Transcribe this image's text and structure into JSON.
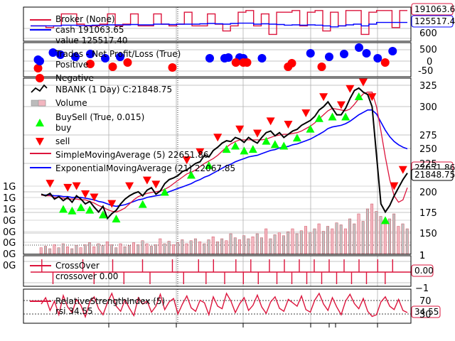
{
  "chart_data": [
    {
      "type": "line",
      "panel": "broker",
      "legend": {
        "title": "Broker (None)",
        "cash_label": "cash 191063.65",
        "value_label": "value 125517.40"
      },
      "callouts": {
        "cash": "191063.6",
        "value": "125517.4"
      },
      "yticks": [
        "600"
      ],
      "series": [
        {
          "name": "cash",
          "color": "#dc143c",
          "values": [
            0.45,
            0.45,
            0.4,
            0.45,
            0.8,
            0.8,
            0.5,
            0.45,
            0.45,
            0.5,
            0.8,
            0.45,
            0.5,
            0.8,
            0.45,
            0.45,
            0.8,
            0.5,
            0.45,
            0.5,
            0.85,
            0.45,
            0.45,
            0.8,
            0.5,
            0.3,
            0.45,
            0.85,
            0.9,
            0.45,
            0.8,
            0.2,
            0.85,
            0.85,
            0.9,
            0.45,
            0.85,
            0.9,
            0.3,
            0.85,
            0.45,
            0.9,
            0.9,
            0.2,
            0.85,
            0.9,
            0.9,
            0.4,
            0.9,
            0.9
          ]
        },
        {
          "name": "value",
          "color": "#0000ff",
          "values": [
            0.45,
            0.45,
            0.45,
            0.45,
            0.47,
            0.47,
            0.46,
            0.46,
            0.47,
            0.47,
            0.48,
            0.48,
            0.48,
            0.49,
            0.48,
            0.48,
            0.5,
            0.5,
            0.49,
            0.5,
            0.5,
            0.5,
            0.51,
            0.52,
            0.51,
            0.5,
            0.52,
            0.53,
            0.53,
            0.5,
            0.51,
            0.5,
            0.49,
            0.47,
            0.48,
            0.47,
            0.48,
            0.47,
            0.45,
            0.42,
            0.45,
            0.48,
            0.5,
            0.45,
            0.5,
            0.55,
            0.55,
            0.55,
            0.55,
            0.55
          ]
        }
      ]
    },
    {
      "type": "scatter",
      "panel": "trades",
      "legend": {
        "title": "Trades - Net Profit/Loss (True)",
        "positive": "Positive",
        "negative": "Negative"
      },
      "yticks": [
        "500",
        "0",
        "-50"
      ],
      "positive": {
        "color": "#0000ff",
        "points": [
          [
            0.02,
            0.1
          ],
          [
            0.06,
            0.6
          ],
          [
            0.08,
            0.45
          ],
          [
            0.12,
            0.3
          ],
          [
            0.16,
            0.5
          ],
          [
            0.2,
            0.2
          ],
          [
            0.24,
            0.3
          ],
          [
            0.48,
            0.2
          ],
          [
            0.52,
            0.2
          ],
          [
            0.53,
            0.25
          ],
          [
            0.56,
            0.25
          ],
          [
            0.57,
            0.2
          ],
          [
            0.62,
            0.2
          ],
          [
            0.75,
            0.55
          ],
          [
            0.8,
            0.3
          ],
          [
            0.84,
            0.5
          ],
          [
            0.88,
            0.95
          ],
          [
            0.9,
            0.55
          ],
          [
            0.93,
            0.2
          ],
          [
            0.97,
            0.7
          ]
        ]
      },
      "negative": {
        "color": "#ff0000",
        "points": [
          [
            0.02,
            -0.5
          ],
          [
            0.16,
            -0.2
          ],
          [
            0.22,
            -0.4
          ],
          [
            0.26,
            -0.1
          ],
          [
            0.38,
            -0.45
          ],
          [
            0.55,
            -0.1
          ],
          [
            0.57,
            -0.1
          ],
          [
            0.58,
            -0.1
          ],
          [
            0.69,
            -0.4
          ],
          [
            0.7,
            -0.15
          ],
          [
            0.78,
            -0.4
          ],
          [
            0.95,
            -0.1
          ]
        ]
      }
    },
    {
      "type": "line",
      "panel": "price",
      "legend": {
        "price": "NBANK (1 Day) C:21848.75",
        "volume": "Volume",
        "buysell": "BuySell (True, 0.015)",
        "buy": "buy",
        "sell": "sell",
        "sma": "SimpleMovingAverage (5) 22651.86",
        "ema": "ExponentialMovingAverage (21) 22067.85"
      },
      "callouts": {
        "sma": "22651.86",
        "close": "21848.75"
      },
      "yticks_right": [
        "325",
        "300",
        "275",
        "250",
        "225",
        "200",
        "175",
        "150",
        "1"
      ],
      "yticks_left": [
        "1G",
        "1G",
        "1G",
        "0G",
        "0G",
        "0G",
        "0G",
        "0G"
      ],
      "ylim": [
        130,
        330
      ],
      "close": [
        192,
        190,
        193,
        186,
        189,
        184,
        188,
        182,
        190,
        186,
        180,
        183,
        176,
        170,
        177,
        162,
        168,
        172,
        180,
        186,
        190,
        193,
        195,
        190,
        197,
        200,
        192,
        196,
        205,
        210,
        212,
        215,
        220,
        222,
        226,
        230,
        232,
        240,
        238,
        246,
        250,
        255,
        258,
        257,
        262,
        260,
        256,
        262,
        258,
        255,
        262,
        268,
        270,
        264,
        268,
        262,
        266,
        270,
        272,
        277,
        280,
        283,
        288,
        296,
        300,
        306,
        298,
        290,
        290,
        298,
        310,
        320,
        323,
        318,
        315,
        300,
        240,
        180,
        170,
        178,
        190,
        200,
        210,
        218
      ],
      "sma": [
        191,
        190,
        190,
        188,
        188,
        187,
        186,
        186,
        186,
        185,
        185,
        183,
        181,
        178,
        176,
        173,
        171,
        170,
        172,
        175,
        180,
        185,
        189,
        191,
        193,
        194,
        195,
        196,
        198,
        201,
        205,
        209,
        213,
        217,
        219,
        222,
        226,
        230,
        233,
        236,
        240,
        245,
        250,
        254,
        257,
        259,
        259,
        259,
        259,
        259,
        259,
        260,
        262,
        264,
        265,
        266,
        266,
        267,
        268,
        270,
        273,
        276,
        280,
        285,
        290,
        295,
        298,
        297,
        296,
        295,
        297,
        303,
        310,
        316,
        318,
        318,
        300,
        270,
        238,
        210,
        190,
        182,
        185,
        200
      ],
      "ema": [
        191,
        191,
        191,
        190,
        190,
        189,
        189,
        188,
        188,
        188,
        187,
        186,
        185,
        183,
        182,
        180,
        178,
        177,
        178,
        179,
        181,
        183,
        185,
        186,
        188,
        189,
        190,
        191,
        193,
        195,
        197,
        199,
        201,
        203,
        205,
        208,
        210,
        213,
        215,
        218,
        221,
        224,
        227,
        229,
        232,
        234,
        236,
        238,
        239,
        240,
        242,
        244,
        246,
        247,
        249,
        250,
        251,
        253,
        254,
        256,
        258,
        260,
        263,
        266,
        269,
        273,
        275,
        276,
        277,
        279,
        282,
        286,
        290,
        293,
        296,
        296,
        291,
        281,
        271,
        263,
        257,
        253,
        250,
        248
      ],
      "buy_idx": [
        5,
        7,
        9,
        11,
        14,
        17,
        23,
        28,
        34,
        38,
        42,
        44,
        46,
        48,
        51,
        53,
        55,
        58,
        61,
        63,
        66,
        69,
        72,
        78
      ],
      "sell_idx": [
        2,
        6,
        8,
        10,
        12,
        16,
        20,
        24,
        26,
        33,
        36,
        40,
        45,
        49,
        52,
        56,
        60,
        64,
        68,
        70,
        73,
        75,
        80,
        82
      ],
      "volume": [
        0.12,
        0.15,
        0.1,
        0.18,
        0.12,
        0.2,
        0.14,
        0.1,
        0.16,
        0.12,
        0.18,
        0.22,
        0.14,
        0.2,
        0.16,
        0.24,
        0.18,
        0.12,
        0.2,
        0.14,
        0.16,
        0.22,
        0.18,
        0.26,
        0.2,
        0.15,
        0.18,
        0.3,
        0.2,
        0.25,
        0.18,
        0.22,
        0.28,
        0.2,
        0.26,
        0.3,
        0.24,
        0.2,
        0.28,
        0.34,
        0.24,
        0.3,
        0.26,
        0.4,
        0.32,
        0.28,
        0.36,
        0.3,
        0.34,
        0.4,
        0.32,
        0.5,
        0.3,
        0.38,
        0.42,
        0.36,
        0.44,
        0.5,
        0.4,
        0.46,
        0.55,
        0.42,
        0.5,
        0.6,
        0.45,
        0.55,
        0.5,
        0.62,
        0.58,
        0.5,
        0.7,
        0.6,
        0.8,
        0.65,
        0.9,
        1.0,
        0.85,
        0.75,
        0.6,
        0.7,
        0.8,
        0.55,
        0.6,
        0.5
      ]
    },
    {
      "type": "line",
      "panel": "crossover",
      "legend": {
        "title": "CrossOver",
        "value_label": "crossover 0.00"
      },
      "callout": "0.00",
      "yticks": [
        "1",
        "−1"
      ],
      "events": [
        [
          0.03,
          1
        ],
        [
          0.06,
          -1
        ],
        [
          0.14,
          1
        ],
        [
          0.17,
          -1
        ],
        [
          0.22,
          1
        ],
        [
          0.25,
          -1
        ],
        [
          0.3,
          1
        ],
        [
          0.32,
          -1
        ],
        [
          0.38,
          1
        ],
        [
          0.41,
          -1
        ],
        [
          0.45,
          1
        ],
        [
          0.47,
          -1
        ],
        [
          0.49,
          1
        ],
        [
          0.52,
          -1
        ],
        [
          0.55,
          1
        ],
        [
          0.57,
          -1
        ],
        [
          0.59,
          1
        ],
        [
          0.61,
          -1
        ],
        [
          0.64,
          1
        ],
        [
          0.66,
          -1
        ],
        [
          0.68,
          1
        ],
        [
          0.7,
          -1
        ],
        [
          0.72,
          1
        ],
        [
          0.74,
          -1
        ],
        [
          0.76,
          1
        ],
        [
          0.78,
          -1
        ],
        [
          0.8,
          1
        ],
        [
          0.82,
          -1
        ],
        [
          0.84,
          1
        ],
        [
          0.86,
          -1
        ],
        [
          0.88,
          1
        ],
        [
          0.9,
          -1
        ],
        [
          0.93,
          1
        ],
        [
          0.95,
          -1
        ],
        [
          0.97,
          1
        ]
      ]
    },
    {
      "type": "line",
      "panel": "rsi",
      "legend": {
        "title": "RelativeStrengthIndex (5)",
        "value_label": "rsi 34.55"
      },
      "callout": "34.55",
      "yticks": [
        "70",
        "30"
      ],
      "ylim": [
        10,
        90
      ],
      "values": [
        55,
        70,
        40,
        62,
        30,
        75,
        48,
        35,
        66,
        52,
        25,
        60,
        72,
        44,
        30,
        58,
        80,
        50,
        38,
        65,
        45,
        28,
        70,
        55,
        62,
        36,
        50,
        78,
        42,
        60,
        68,
        32,
        55,
        74,
        46,
        38,
        64,
        58,
        30,
        72,
        50,
        44,
        80,
        62,
        35,
        56,
        70,
        40,
        52,
        76,
        48,
        33,
        60,
        72,
        45,
        38,
        66,
        58,
        50,
        74,
        42,
        36,
        64,
        80,
        55,
        40,
        70,
        48,
        30,
        62,
        78,
        56,
        44,
        68,
        38,
        26,
        30,
        60,
        72,
        50,
        42,
        66,
        40,
        35
      ]
    }
  ]
}
